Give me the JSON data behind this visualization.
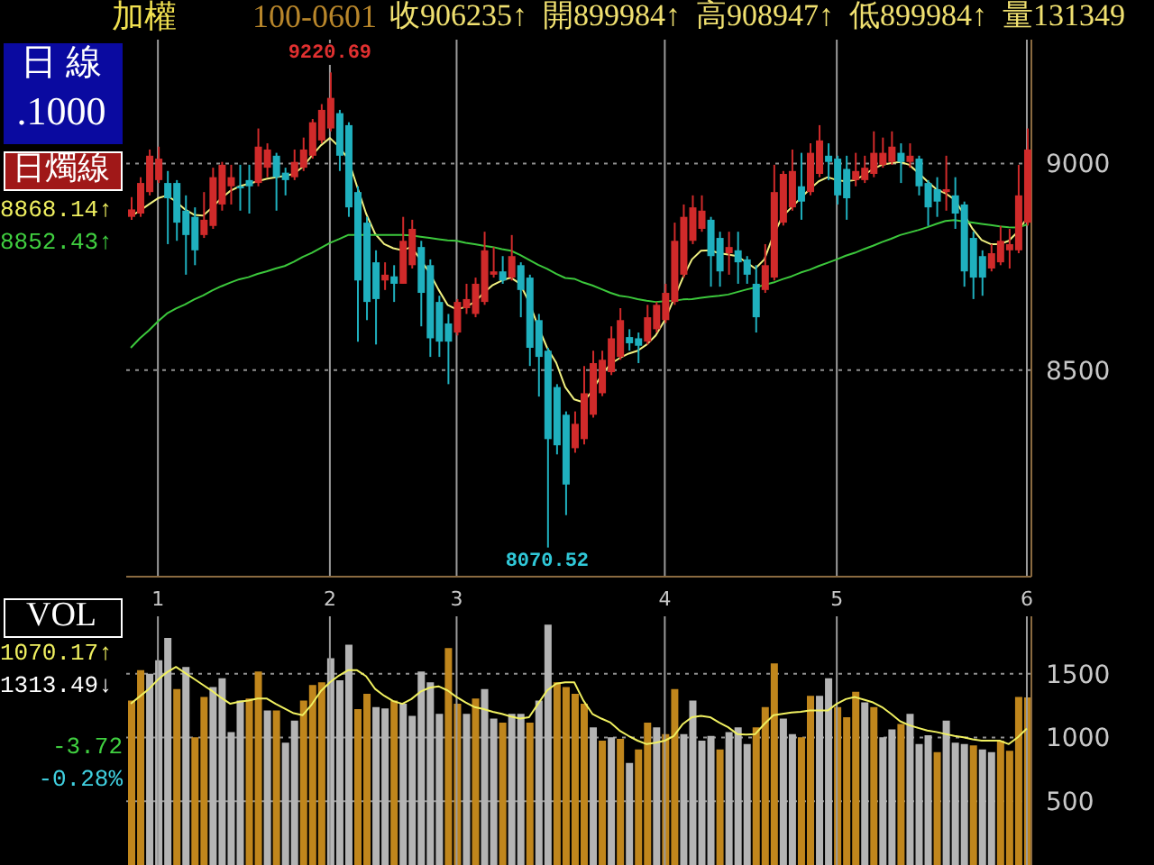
{
  "chart_data": [
    {
      "type": "candlestick",
      "categories": [
        null,
        null,
        null,
        "1",
        null,
        null,
        null,
        null,
        null,
        null,
        null,
        null,
        null,
        null,
        null,
        null,
        null,
        null,
        null,
        null,
        null,
        null,
        "2",
        null,
        null,
        null,
        null,
        null,
        null,
        null,
        null,
        null,
        null,
        null,
        null,
        null,
        "3",
        null,
        null,
        null,
        null,
        null,
        null,
        null,
        null,
        null,
        null,
        null,
        null,
        null,
        null,
        null,
        null,
        null,
        null,
        null,
        null,
        null,
        null,
        "4",
        null,
        null,
        null,
        null,
        null,
        null,
        null,
        null,
        null,
        null,
        null,
        null,
        null,
        null,
        null,
        null,
        null,
        null,
        "5",
        null,
        null,
        null,
        null,
        null,
        null,
        null,
        null,
        null,
        null,
        null,
        null,
        null,
        null,
        null,
        null,
        null,
        null,
        null,
        null,
        "6"
      ],
      "ohlc": [
        [
          8871,
          8919,
          8864,
          8889
        ],
        [
          8879,
          8967,
          8871,
          8953
        ],
        [
          8931,
          9034,
          8923,
          9019
        ],
        [
          8960,
          9041,
          8953,
          9012
        ],
        [
          8953,
          8982,
          8805,
          8916
        ],
        [
          8953,
          8960,
          8813,
          8857
        ],
        [
          8886,
          8923,
          8731,
          8827
        ],
        [
          8871,
          8894,
          8754,
          8790
        ],
        [
          8827,
          8931,
          8820,
          8864
        ],
        [
          8849,
          8990,
          8842,
          8967
        ],
        [
          8901,
          9004,
          8886,
          8997
        ],
        [
          8945,
          8997,
          8901,
          8967
        ],
        [
          8945,
          8997,
          8886,
          8940
        ],
        [
          8960,
          8997,
          8879,
          8945
        ],
        [
          8953,
          9085,
          8945,
          9041
        ],
        [
          8990,
          9049,
          8967,
          9034
        ],
        [
          9019,
          9026,
          8886,
          8967
        ],
        [
          8978,
          8990,
          8923,
          8960
        ],
        [
          8967,
          9034,
          8960,
          9004
        ],
        [
          8990,
          9063,
          8982,
          9034
        ],
        [
          9019,
          9108,
          9012,
          9100
        ],
        [
          9056,
          9144,
          9049,
          9130
        ],
        [
          9085,
          9220.69,
          9078,
          9159
        ],
        [
          9122,
          9130,
          8982,
          9019
        ],
        [
          9093,
          9100,
          8871,
          8894
        ],
        [
          8931,
          8945,
          8569,
          8717
        ],
        [
          8857,
          8871,
          8621,
          8665
        ],
        [
          8761,
          8790,
          8562,
          8672
        ],
        [
          8717,
          8761,
          8694,
          8731
        ],
        [
          8727,
          8754,
          8665,
          8709
        ],
        [
          8709,
          8871,
          8709,
          8813
        ],
        [
          8754,
          8864,
          8746,
          8842
        ],
        [
          8798,
          8813,
          8606,
          8687
        ],
        [
          8754,
          8768,
          8532,
          8577
        ],
        [
          8665,
          8680,
          8532,
          8569
        ],
        [
          8613,
          8636,
          8466,
          8569
        ],
        [
          8591,
          8672,
          8584,
          8665
        ],
        [
          8650,
          8709,
          8636,
          8672
        ],
        [
          8636,
          8724,
          8628,
          8709
        ],
        [
          8665,
          8835,
          8658,
          8790
        ],
        [
          8731,
          8798,
          8724,
          8739
        ],
        [
          8739,
          8776,
          8709,
          8717
        ],
        [
          8724,
          8827,
          8717,
          8776
        ],
        [
          8754,
          8761,
          8628,
          8694
        ],
        [
          8724,
          8731,
          8510,
          8554
        ],
        [
          8621,
          8636,
          8436,
          8532
        ],
        [
          8547,
          8554,
          8070.52,
          8333
        ],
        [
          8459,
          8466,
          8296,
          8318
        ],
        [
          8392,
          8400,
          8149,
          8223
        ],
        [
          8311,
          8400,
          8300,
          8370
        ],
        [
          8333,
          8510,
          8320,
          8444
        ],
        [
          8392,
          8547,
          8385,
          8517
        ],
        [
          8444,
          8547,
          8437,
          8525
        ],
        [
          8495,
          8606,
          8488,
          8577
        ],
        [
          8532,
          8650,
          8525,
          8621
        ],
        [
          8580,
          8599,
          8547,
          8565
        ],
        [
          8577,
          8591,
          8517,
          8559
        ],
        [
          8569,
          8658,
          8562,
          8628
        ],
        [
          8599,
          8665,
          8591,
          8658
        ],
        [
          8621,
          8709,
          8614,
          8687
        ],
        [
          8665,
          8857,
          8658,
          8813
        ],
        [
          8731,
          8901,
          8724,
          8871
        ],
        [
          8813,
          8923,
          8805,
          8894
        ],
        [
          8842,
          8923,
          8835,
          8886
        ],
        [
          8864,
          8871,
          8702,
          8776
        ],
        [
          8820,
          8835,
          8702,
          8739
        ],
        [
          8783,
          8835,
          8731,
          8798
        ],
        [
          8790,
          8835,
          8709,
          8761
        ],
        [
          8768,
          8776,
          8709,
          8731
        ],
        [
          8709,
          8754,
          8591,
          8628
        ],
        [
          8694,
          8805,
          8687,
          8754
        ],
        [
          8724,
          8997,
          8717,
          8931
        ],
        [
          8857,
          8982,
          8850,
          8975
        ],
        [
          8894,
          9034,
          8886,
          8982
        ],
        [
          8945,
          9026,
          8864,
          8908
        ],
        [
          8931,
          9049,
          8923,
          9026
        ],
        [
          8975,
          9093,
          8967,
          9056
        ],
        [
          9019,
          9049,
          8960,
          9004
        ],
        [
          9012,
          9019,
          8901,
          8923
        ],
        [
          8987,
          9019,
          8864,
          8916
        ],
        [
          8960,
          9026,
          8945,
          8982
        ],
        [
          8960,
          9019,
          8953,
          8990
        ],
        [
          8975,
          9078,
          8967,
          9026
        ],
        [
          8997,
          9063,
          8990,
          9026
        ],
        [
          9004,
          9078,
          8997,
          9041
        ],
        [
          9026,
          9049,
          8953,
          9004
        ],
        [
          9004,
          9049,
          8990,
          9019
        ],
        [
          9012,
          9019,
          8923,
          8945
        ],
        [
          8953,
          8960,
          8849,
          8894
        ],
        [
          8938,
          8967,
          8871,
          8908
        ],
        [
          8931,
          9019,
          8886,
          8938
        ],
        [
          8923,
          8967,
          8842,
          8879
        ],
        [
          8901,
          8908,
          8702,
          8739
        ],
        [
          8820,
          8835,
          8672,
          8724
        ],
        [
          8776,
          8790,
          8680,
          8724
        ],
        [
          8746,
          8805,
          8739,
          8783
        ],
        [
          8761,
          8849,
          8754,
          8813
        ],
        [
          8790,
          8842,
          8746,
          8805
        ],
        [
          8790,
          8997,
          8783,
          8923
        ],
        [
          8857,
          9085,
          8850,
          9034
        ]
      ],
      "colors": [
        "#d02a2a",
        "#d02a2a",
        "#d02a2a",
        "#d02a2a",
        "#1fb0be",
        "#1fb0be",
        "#1fb0be",
        "#1fb0be",
        "#d02a2a",
        "#d02a2a",
        "#d02a2a",
        "#d02a2a",
        "#1fb0be",
        "#1fb0be",
        "#d02a2a",
        "#d02a2a",
        "#1fb0be",
        "#1fb0be",
        "#d02a2a",
        "#d02a2a",
        "#d02a2a",
        "#d02a2a",
        "#d02a2a",
        "#1fb0be",
        "#1fb0be",
        "#1fb0be",
        "#1fb0be",
        "#1fb0be",
        "#d02a2a",
        "#1fb0be",
        "#d02a2a",
        "#d02a2a",
        "#1fb0be",
        "#1fb0be",
        "#1fb0be",
        "#1fb0be",
        "#d02a2a",
        "#d02a2a",
        "#d02a2a",
        "#d02a2a",
        "#d02a2a",
        "#1fb0be",
        "#d02a2a",
        "#1fb0be",
        "#1fb0be",
        "#1fb0be",
        "#1fb0be",
        "#1fb0be",
        "#1fb0be",
        "#d02a2a",
        "#d02a2a",
        "#d02a2a",
        "#d02a2a",
        "#d02a2a",
        "#d02a2a",
        "#1fb0be",
        "#1fb0be",
        "#d02a2a",
        "#d02a2a",
        "#d02a2a",
        "#d02a2a",
        "#d02a2a",
        "#d02a2a",
        "#d02a2a",
        "#1fb0be",
        "#1fb0be",
        "#d02a2a",
        "#1fb0be",
        "#1fb0be",
        "#1fb0be",
        "#d02a2a",
        "#d02a2a",
        "#d02a2a",
        "#d02a2a",
        "#1fb0be",
        "#d02a2a",
        "#d02a2a",
        "#1fb0be",
        "#1fb0be",
        "#1fb0be",
        "#d02a2a",
        "#d02a2a",
        "#d02a2a",
        "#d02a2a",
        "#d02a2a",
        "#1fb0be",
        "#d02a2a",
        "#1fb0be",
        "#1fb0be",
        "#1fb0be",
        "#d02a2a",
        "#1fb0be",
        "#1fb0be",
        "#1fb0be",
        "#1fb0be",
        "#d02a2a",
        "#d02a2a",
        "#d02a2a",
        "#d02a2a",
        "#d02a2a"
      ],
      "series": [
        {
          "type": "line",
          "color": "#f0f080",
          "values": [
            8872,
            8886,
            8901,
            8916,
            8923,
            8908,
            8889,
            8876,
            8874,
            8894,
            8916,
            8934,
            8945,
            8951,
            8957,
            8963,
            8967,
            8970,
            8975,
            8992,
            9019,
            9044,
            9062,
            9041,
            9012,
            8945,
            8879,
            8830,
            8805,
            8795,
            8790,
            8798,
            8768,
            8736,
            8695,
            8658,
            8647,
            8653,
            8665,
            8687,
            8706,
            8717,
            8724,
            8709,
            8665,
            8606,
            8554,
            8518,
            8459,
            8429,
            8422,
            8451,
            8488,
            8515,
            8529,
            8540,
            8547,
            8562,
            8584,
            8621,
            8672,
            8724,
            8768,
            8789,
            8790,
            8783,
            8780,
            8776,
            8761,
            8746,
            8768,
            8827,
            8872,
            8894,
            8916,
            8938,
            8957,
            8967,
            8960,
            8957,
            8960,
            8972,
            8987,
            8997,
            9001,
            9004,
            8997,
            8978,
            8957,
            8938,
            8928,
            8913,
            8879,
            8842,
            8815,
            8805,
            8805,
            8813,
            8835,
            8868.14
          ]
        },
        {
          "type": "line",
          "color": "#3cc83c",
          "values": [
            8554,
            8577,
            8596,
            8618,
            8637,
            8649,
            8659,
            8671,
            8681,
            8693,
            8703,
            8712,
            8720,
            8725,
            8733,
            8739,
            8746,
            8752,
            8762,
            8774,
            8784,
            8796,
            8808,
            8817,
            8827,
            8827,
            8827,
            8827,
            8827,
            8827,
            8827,
            8826,
            8823,
            8820,
            8817,
            8814,
            8813,
            8808,
            8805,
            8801,
            8798,
            8793,
            8789,
            8779,
            8767,
            8755,
            8745,
            8733,
            8723,
            8721,
            8712,
            8705,
            8696,
            8687,
            8680,
            8677,
            8672,
            8668,
            8665,
            8667,
            8668,
            8671,
            8672,
            8675,
            8678,
            8680,
            8683,
            8689,
            8695,
            8700,
            8706,
            8712,
            8720,
            8727,
            8736,
            8743,
            8752,
            8760,
            8768,
            8777,
            8784,
            8793,
            8801,
            8810,
            8818,
            8827,
            8833,
            8839,
            8846,
            8854,
            8861,
            8863,
            8860,
            8857,
            8854,
            8851,
            8848,
            8846,
            8845,
            8852.43
          ]
        }
      ],
      "ylim": [
        8000,
        9300
      ],
      "yticks": [
        8500,
        9000
      ],
      "grid": true,
      "annotations": [
        "加權",
        "100-0601",
        "收906235↑",
        "開899984↑",
        "高908947↑",
        "低899984↑",
        "量131349",
        "日 線",
        ".1000",
        "日燭線",
        "8868.14↑",
        "8852.43↑",
        {
          "text": "9220.69",
          "y": 9220.69
        },
        {
          "text": "8070.52",
          "y": 8070.52
        }
      ]
    },
    {
      "type": "bar",
      "categories": [
        null,
        null,
        null,
        "1",
        null,
        null,
        null,
        null,
        null,
        null,
        null,
        null,
        null,
        null,
        null,
        null,
        null,
        null,
        null,
        null,
        null,
        null,
        "2",
        null,
        null,
        null,
        null,
        null,
        null,
        null,
        null,
        null,
        null,
        null,
        null,
        null,
        "3",
        null,
        null,
        null,
        null,
        null,
        null,
        null,
        null,
        null,
        null,
        null,
        null,
        null,
        null,
        null,
        null,
        null,
        null,
        null,
        null,
        null,
        null,
        "4",
        null,
        null,
        null,
        null,
        null,
        null,
        null,
        null,
        null,
        null,
        null,
        null,
        null,
        null,
        null,
        null,
        null,
        null,
        "5",
        null,
        null,
        null,
        null,
        null,
        null,
        null,
        null,
        null,
        null,
        null,
        null,
        null,
        null,
        null,
        null,
        null,
        null,
        null,
        null,
        "6"
      ],
      "values": [
        1290,
        1527,
        1500,
        1606,
        1780,
        1380,
        1553,
        1001,
        1317,
        1395,
        1464,
        1043,
        1290,
        1306,
        1517,
        1211,
        1211,
        959,
        1132,
        1290,
        1411,
        1432,
        1622,
        1448,
        1727,
        1222,
        1343,
        1238,
        1227,
        1290,
        1264,
        1169,
        1517,
        1432,
        1185,
        1701,
        1264,
        1185,
        1306,
        1380,
        1148,
        1117,
        1185,
        1185,
        1117,
        1290,
        1885,
        1432,
        1395,
        1343,
        1264,
        1080,
        975,
        1001,
        990,
        801,
        906,
        1117,
        1080,
        1027,
        1380,
        1027,
        1290,
        975,
        1012,
        906,
        1043,
        1080,
        948,
        1080,
        1238,
        1580,
        1148,
        1027,
        1001,
        1327,
        1327,
        1464,
        1238,
        1159,
        1359,
        1275,
        1238,
        1001,
        1064,
        1106,
        1185,
        948,
        1017,
        885,
        1132,
        959,
        948,
        938,
        906,
        885,
        975,
        896,
        1317,
        1313.49
      ],
      "colors": [
        "#c0861c",
        "#c0861c",
        "#b4b4b4",
        "#b4b4b4",
        "#b4b4b4",
        "#c0861c",
        "#b4b4b4",
        "#c0861c",
        "#c0861c",
        "#b4b4b4",
        "#b4b4b4",
        "#b4b4b4",
        "#b4b4b4",
        "#c0861c",
        "#c0861c",
        "#b4b4b4",
        "#c0861c",
        "#b4b4b4",
        "#b4b4b4",
        "#c0861c",
        "#c0861c",
        "#c0861c",
        "#b4b4b4",
        "#b4b4b4",
        "#b4b4b4",
        "#c0861c",
        "#c0861c",
        "#b4b4b4",
        "#b4b4b4",
        "#c0861c",
        "#b4b4b4",
        "#b4b4b4",
        "#b4b4b4",
        "#b4b4b4",
        "#b4b4b4",
        "#c0861c",
        "#c0861c",
        "#b4b4b4",
        "#c0861c",
        "#b4b4b4",
        "#b4b4b4",
        "#c0861c",
        "#b4b4b4",
        "#b4b4b4",
        "#c0861c",
        "#b4b4b4",
        "#b4b4b4",
        "#c0861c",
        "#c0861c",
        "#c0861c",
        "#c0861c",
        "#b4b4b4",
        "#c0861c",
        "#b4b4b4",
        "#c0861c",
        "#b4b4b4",
        "#c0861c",
        "#c0861c",
        "#b4b4b4",
        "#c0861c",
        "#c0861c",
        "#b4b4b4",
        "#b4b4b4",
        "#b4b4b4",
        "#b4b4b4",
        "#c0861c",
        "#b4b4b4",
        "#b4b4b4",
        "#b4b4b4",
        "#c0861c",
        "#c0861c",
        "#c0861c",
        "#b4b4b4",
        "#b4b4b4",
        "#c0861c",
        "#c0861c",
        "#b4b4b4",
        "#b4b4b4",
        "#c0861c",
        "#c0861c",
        "#c0861c",
        "#b4b4b4",
        "#c0861c",
        "#b4b4b4",
        "#b4b4b4",
        "#c0861c",
        "#b4b4b4",
        "#b4b4b4",
        "#b4b4b4",
        "#c0861c",
        "#b4b4b4",
        "#b4b4b4",
        "#b4b4b4",
        "#c0861c",
        "#b4b4b4",
        "#b4b4b4",
        "#c0861c",
        "#c0861c",
        "#c0861c",
        "#c0861c"
      ],
      "series": [
        {
          "type": "line",
          "color": "#f0f060",
          "values": [
            1264,
            1322,
            1380,
            1453,
            1511,
            1553,
            1506,
            1459,
            1411,
            1364,
            1311,
            1264,
            1280,
            1290,
            1306,
            1306,
            1264,
            1227,
            1190,
            1175,
            1259,
            1364,
            1432,
            1485,
            1527,
            1527,
            1480,
            1380,
            1327,
            1285,
            1264,
            1301,
            1359,
            1390,
            1401,
            1369,
            1317,
            1275,
            1238,
            1222,
            1201,
            1185,
            1164,
            1148,
            1159,
            1264,
            1369,
            1422,
            1432,
            1432,
            1290,
            1185,
            1148,
            1117,
            1054,
            1012,
            975,
            948,
            959,
            975,
            1012,
            1106,
            1159,
            1169,
            1159,
            1117,
            1080,
            1027,
            1022,
            1027,
            1106,
            1175,
            1185,
            1196,
            1201,
            1211,
            1211,
            1211,
            1264,
            1301,
            1317,
            1296,
            1275,
            1238,
            1185,
            1127,
            1096,
            1075,
            1054,
            1043,
            1027,
            1012,
            1001,
            985,
            975,
            975,
            975,
            948,
            1001,
            1070.17
          ]
        }
      ],
      "ylim": [
        0,
        1950
      ],
      "yticks": [
        500,
        1000,
        1500
      ],
      "grid": true,
      "tick_labels": "y",
      "annotations": [
        "VOL",
        "1070.17↑",
        "1313.49↓",
        "-3.72",
        "-0.28%"
      ]
    }
  ]
}
